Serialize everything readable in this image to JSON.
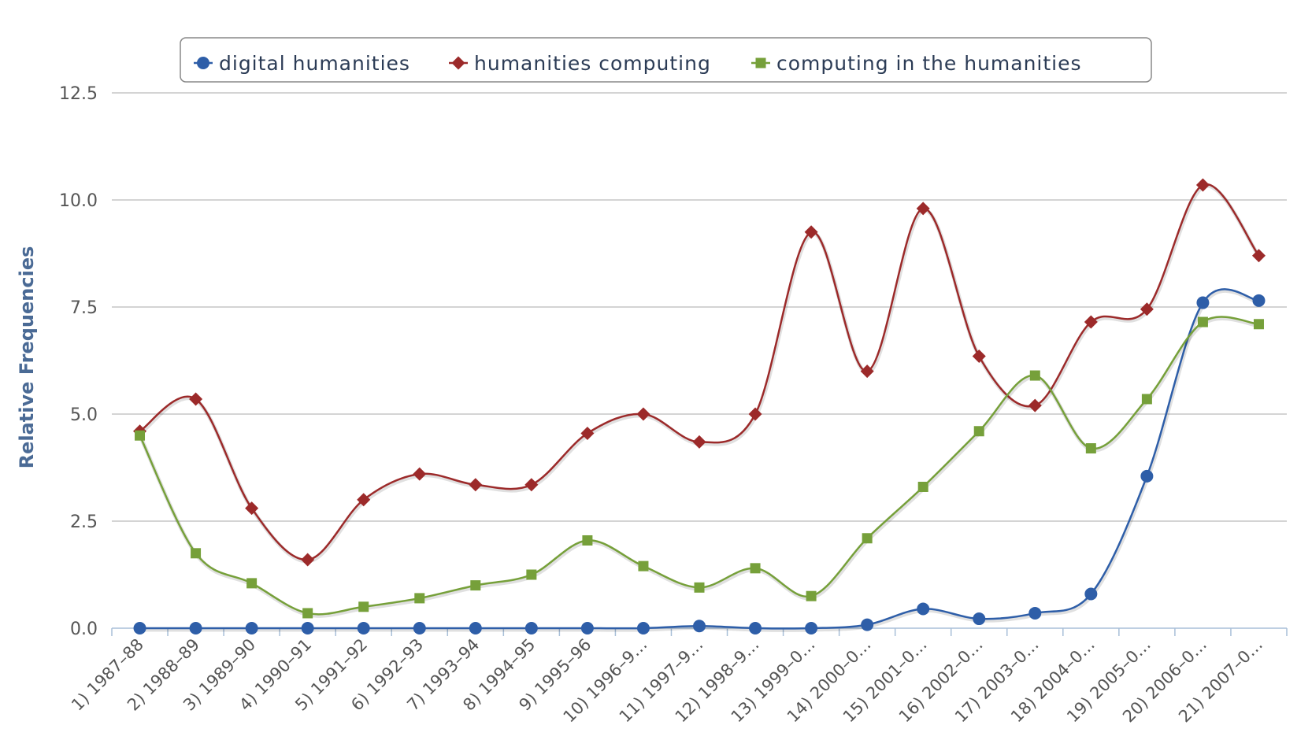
{
  "chart_data": {
    "type": "line",
    "ylabel": "Relative Frequencies",
    "ylim": [
      0,
      12.5
    ],
    "yticks": [
      "0.0",
      "2.5",
      "5.0",
      "7.5",
      "10.0",
      "12.5"
    ],
    "grid": true,
    "legend_position": "top",
    "categories": [
      "1) 1987–88",
      "2) 1988–89",
      "3) 1989–90",
      "4) 1990–91",
      "5) 1991–92",
      "6) 1992–93",
      "7) 1993–94",
      "8) 1994–95",
      "9) 1995–96",
      "10) 1996–9…",
      "11) 1997–9…",
      "12) 1998–9…",
      "13) 1999–0…",
      "14) 2000–0…",
      "15) 2001–0…",
      "16) 2002–0…",
      "17) 2003–0…",
      "18) 2004–0…",
      "19) 2005–0…",
      "20) 2006–0…",
      "21) 2007–0…"
    ],
    "series": [
      {
        "name": "digital humanities",
        "color": "#2e5ea8",
        "marker": "circle",
        "values": [
          0,
          0,
          0,
          0,
          0,
          0,
          0,
          0,
          0,
          0,
          0.05,
          0,
          0,
          0.08,
          0.45,
          0.22,
          0.35,
          0.8,
          3.55,
          7.6,
          7.65
        ]
      },
      {
        "name": "humanities computing",
        "color": "#9c2a2a",
        "marker": "diamond",
        "values": [
          4.6,
          5.35,
          2.8,
          1.6,
          3.0,
          3.6,
          3.35,
          3.35,
          4.55,
          5.0,
          4.35,
          5.0,
          9.25,
          6.0,
          9.8,
          6.35,
          5.2,
          7.15,
          7.45,
          10.35,
          8.7
        ]
      },
      {
        "name": "computing in the humanities",
        "color": "#76a03a",
        "marker": "square",
        "values": [
          4.5,
          1.75,
          1.05,
          0.35,
          0.5,
          0.7,
          1.0,
          1.25,
          2.05,
          1.45,
          0.95,
          1.4,
          0.75,
          2.1,
          3.3,
          4.6,
          5.9,
          4.2,
          5.35,
          7.15,
          7.1
        ]
      }
    ]
  }
}
